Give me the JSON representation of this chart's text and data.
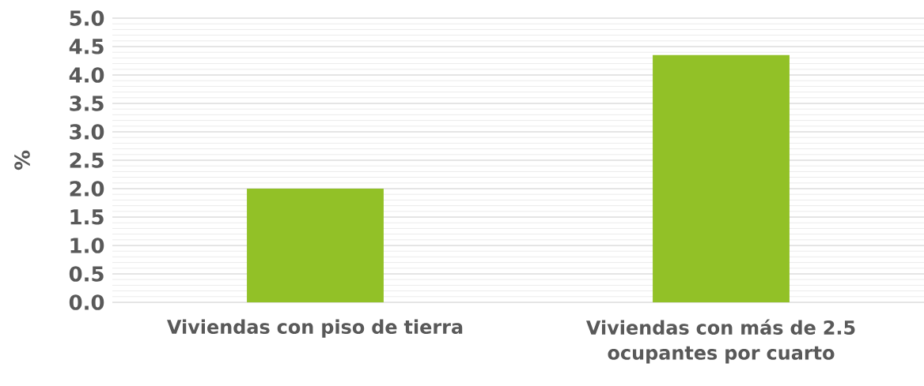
{
  "chart_data": {
    "type": "bar",
    "ylabel": "%",
    "categories": [
      "Viviendas con piso de tierra",
      "Viviendas con más de 2.5 ocupantes por cuarto"
    ],
    "values": [
      2.0,
      4.35
    ],
    "color": "#92c127",
    "ylim": [
      0,
      5
    ],
    "yticks": [
      {
        "value": 0,
        "label": "0.0"
      },
      {
        "value": 0.5,
        "label": "0.5"
      },
      {
        "value": 1,
        "label": "1.0"
      },
      {
        "value": 1.5,
        "label": "1.5"
      },
      {
        "value": 2,
        "label": "2.0"
      },
      {
        "value": 2.5,
        "label": "2.5"
      },
      {
        "value": 3,
        "label": "3.0"
      },
      {
        "value": 3.5,
        "label": "3.5"
      },
      {
        "value": 4,
        "label": "4.0"
      },
      {
        "value": 4.5,
        "label": "4.5"
      },
      {
        "value": 5,
        "label": "5.0"
      }
    ],
    "grid": "y"
  }
}
